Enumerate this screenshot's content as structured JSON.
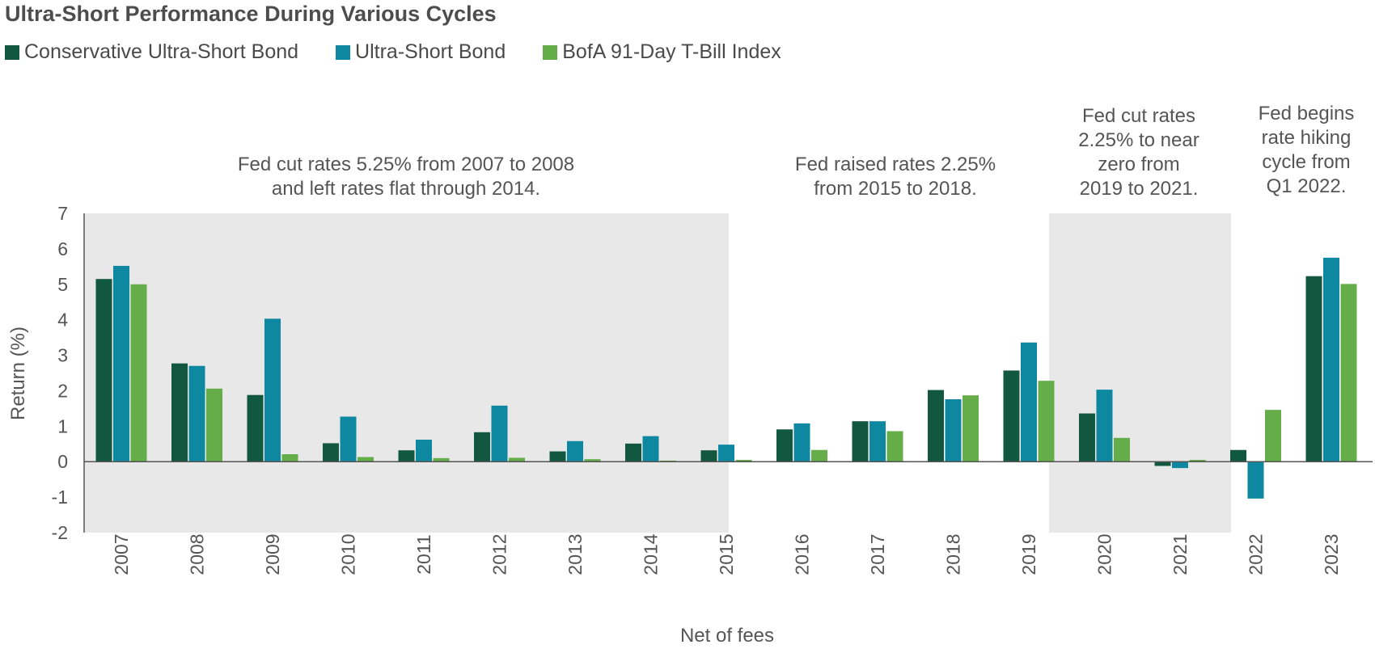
{
  "chart_data": {
    "type": "bar",
    "title": "Ultra-Short Performance During Various Cycles",
    "xlabel": "Net of fees",
    "ylabel": "Return (%)",
    "ylim": [
      -2,
      7
    ],
    "yticks": [
      "7",
      "6",
      "5",
      "4",
      "3",
      "2",
      "1",
      "0",
      "-1",
      "-2"
    ],
    "categories": [
      "2007",
      "2008",
      "2009",
      "2010",
      "2011",
      "2012",
      "2013",
      "2014",
      "2015",
      "2016",
      "2017",
      "2018",
      "2019",
      "2020",
      "2021",
      "2022",
      "2023"
    ],
    "series": [
      {
        "name": "Conservative Ultra-Short Bond",
        "color": "#12573f",
        "values": [
          5.15,
          2.77,
          1.88,
          0.52,
          0.32,
          0.83,
          0.29,
          0.51,
          0.32,
          0.91,
          1.14,
          2.02,
          2.57,
          1.36,
          -0.12,
          0.33,
          5.23
        ]
      },
      {
        "name": "Ultra-Short Bond",
        "color": "#0e87a1",
        "values": [
          5.52,
          2.7,
          4.03,
          1.27,
          0.62,
          1.58,
          0.58,
          0.72,
          0.48,
          1.08,
          1.14,
          1.76,
          3.36,
          2.03,
          -0.18,
          -1.04,
          5.75
        ]
      },
      {
        "name": "BofA 91-Day T-Bill Index",
        "color": "#64ad49",
        "values": [
          5.0,
          2.06,
          0.21,
          0.13,
          0.1,
          0.11,
          0.07,
          0.03,
          0.05,
          0.33,
          0.86,
          1.87,
          2.28,
          0.67,
          0.05,
          1.46,
          5.01
        ]
      }
    ],
    "shaded_periods": [
      {
        "from": "2007",
        "to": "2015",
        "color": "#e8e8e8"
      },
      {
        "from": "2020",
        "to": "2021",
        "color": "#e8e8e8"
      }
    ],
    "annotations": [
      {
        "id": "cut-2007",
        "lines": [
          "Fed cut rates 5.25% from 2007 to 2008",
          "and left rates flat through 2014."
        ]
      },
      {
        "id": "raise-2015",
        "lines": [
          "Fed raised rates 2.25%",
          "from 2015 to 2018."
        ]
      },
      {
        "id": "cut-2019",
        "lines": [
          "Fed cut rates",
          "2.25% to near",
          "zero from",
          "2019 to 2021."
        ]
      },
      {
        "id": "hike-2022",
        "lines": [
          "Fed begins",
          "rate hiking",
          "cycle from",
          "Q1 2022."
        ]
      }
    ],
    "grid": false,
    "legend_position": "top-left"
  }
}
